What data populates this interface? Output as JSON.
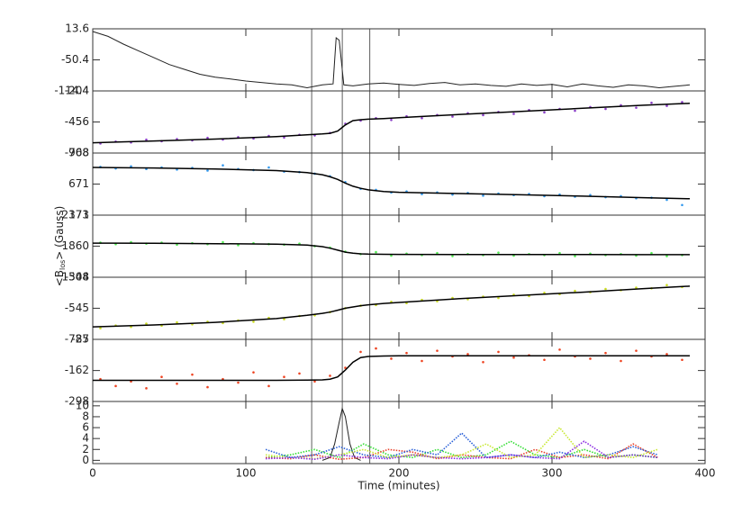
{
  "chart_data": [
    {
      "type": "line",
      "color": "#222222",
      "ylim": [
        -114.4,
        13.6
      ],
      "yticks": [
        13.6,
        -50.4,
        -114.4
      ],
      "vlines": [
        143,
        163,
        181
      ],
      "x": [
        0,
        10,
        20,
        30,
        40,
        50,
        60,
        70,
        80,
        90,
        100,
        110,
        120,
        130,
        140,
        150,
        157,
        159,
        161,
        164,
        170,
        180,
        190,
        200,
        210,
        220,
        230,
        240,
        250,
        260,
        270,
        280,
        290,
        300,
        310,
        320,
        330,
        340,
        350,
        360,
        370,
        380,
        390
      ],
      "values": [
        8,
        -2,
        -18,
        -32,
        -46,
        -60,
        -70,
        -80,
        -86,
        -90,
        -94,
        -97,
        -100,
        -102,
        -108,
        -102,
        -100,
        -5,
        -10,
        -102,
        -104,
        -100,
        -98,
        -101,
        -103,
        -99,
        -97,
        -102,
        -100,
        -103,
        -105,
        -100,
        -103,
        -101,
        -106,
        -100,
        -104,
        -107,
        -102,
        -104,
        -108,
        -105,
        -102
      ]
    },
    {
      "type": "scatter",
      "color": "#8b3fc8",
      "ylim": [
        -708,
        -204
      ],
      "yticks": [
        -204,
        -456,
        -708
      ],
      "x": [
        5,
        15,
        25,
        35,
        45,
        55,
        65,
        75,
        85,
        95,
        105,
        115,
        125,
        135,
        145,
        155,
        165,
        175,
        185,
        195,
        205,
        215,
        225,
        235,
        245,
        255,
        265,
        275,
        285,
        295,
        305,
        315,
        325,
        335,
        345,
        355,
        365,
        375,
        385
      ],
      "values": [
        -630,
        -615,
        -622,
        -600,
        -612,
        -595,
        -605,
        -585,
        -598,
        -580,
        -590,
        -570,
        -582,
        -560,
        -565,
        -545,
        -470,
        -445,
        -425,
        -440,
        -410,
        -425,
        -400,
        -412,
        -385,
        -400,
        -375,
        -390,
        -360,
        -378,
        -350,
        -365,
        -335,
        -350,
        -320,
        -340,
        -300,
        -325,
        -295
      ],
      "fit_color": "#000000",
      "fit_x": [
        0,
        40,
        80,
        120,
        140,
        150,
        155,
        160,
        165,
        170,
        175,
        180,
        190,
        200,
        240,
        280,
        320,
        360,
        390
      ],
      "fit_values": [
        -625,
        -610,
        -595,
        -575,
        -560,
        -553,
        -548,
        -530,
        -480,
        -445,
        -438,
        -433,
        -428,
        -422,
        -395,
        -370,
        -345,
        -320,
        -305
      ]
    },
    {
      "type": "scatter",
      "color": "#3399ee",
      "ylim": [
        373,
        968
      ],
      "yticks": [
        968,
        671,
        373
      ],
      "x": [
        5,
        15,
        25,
        35,
        45,
        55,
        65,
        75,
        85,
        95,
        105,
        115,
        125,
        135,
        145,
        155,
        165,
        175,
        185,
        195,
        205,
        215,
        225,
        235,
        245,
        255,
        265,
        275,
        285,
        295,
        305,
        315,
        325,
        335,
        345,
        355,
        365,
        375,
        385
      ],
      "values": [
        835,
        820,
        840,
        815,
        830,
        810,
        825,
        800,
        850,
        815,
        805,
        830,
        790,
        785,
        770,
        745,
        690,
        625,
        615,
        590,
        600,
        575,
        590,
        570,
        585,
        560,
        580,
        565,
        575,
        555,
        570,
        550,
        565,
        545,
        555,
        535,
        540,
        520,
        470
      ],
      "fit_color": "#000000",
      "fit_x": [
        0,
        40,
        80,
        120,
        140,
        150,
        155,
        160,
        165,
        170,
        175,
        180,
        190,
        200,
        240,
        280,
        320,
        360,
        390
      ],
      "fit_values": [
        830,
        825,
        815,
        800,
        780,
        760,
        740,
        715,
        680,
        650,
        630,
        615,
        600,
        592,
        580,
        568,
        555,
        540,
        530
      ]
    },
    {
      "type": "scatter",
      "color": "#55ee55",
      "ylim": [
        1548,
        2171
      ],
      "yticks": [
        2171,
        1860,
        1548
      ],
      "ylabel": [
        "<B",
        "los",
        "> (Gauss)"
      ],
      "x": [
        5,
        15,
        25,
        35,
        45,
        55,
        65,
        75,
        85,
        95,
        105,
        115,
        125,
        135,
        145,
        155,
        165,
        175,
        185,
        195,
        205,
        215,
        225,
        235,
        245,
        255,
        265,
        275,
        285,
        295,
        305,
        315,
        325,
        335,
        345,
        355,
        365,
        375,
        385
      ],
      "values": [
        1895,
        1880,
        1900,
        1885,
        1895,
        1875,
        1890,
        1880,
        1900,
        1870,
        1890,
        1880,
        1875,
        1885,
        1860,
        1845,
        1805,
        1780,
        1800,
        1765,
        1785,
        1770,
        1790,
        1760,
        1780,
        1770,
        1795,
        1765,
        1780,
        1770,
        1790,
        1760,
        1785,
        1770,
        1780,
        1765,
        1790,
        1760,
        1770
      ],
      "fit_color": "#000000",
      "fit_x": [
        0,
        40,
        80,
        120,
        140,
        150,
        155,
        160,
        165,
        170,
        175,
        180,
        190,
        200,
        240,
        280,
        320,
        360,
        390
      ],
      "fit_values": [
        1890,
        1888,
        1885,
        1880,
        1870,
        1855,
        1840,
        1820,
        1800,
        1790,
        1783,
        1780,
        1778,
        1777,
        1776,
        1776,
        1776,
        1775,
        1775
      ]
    },
    {
      "type": "scatter",
      "color": "#ccdd22",
      "ylim": [
        -787,
        -304
      ],
      "yticks": [
        -304,
        -545,
        -787
      ],
      "x": [
        5,
        15,
        25,
        35,
        45,
        55,
        65,
        75,
        85,
        95,
        105,
        115,
        125,
        135,
        145,
        155,
        165,
        175,
        185,
        195,
        205,
        215,
        225,
        235,
        245,
        255,
        265,
        275,
        285,
        295,
        305,
        315,
        325,
        335,
        345,
        355,
        365,
        375,
        385
      ],
      "values": [
        -700,
        -680,
        -690,
        -665,
        -680,
        -655,
        -670,
        -650,
        -660,
        -640,
        -650,
        -620,
        -630,
        -605,
        -600,
        -575,
        -545,
        -525,
        -520,
        -495,
        -505,
        -480,
        -490,
        -465,
        -475,
        -455,
        -465,
        -440,
        -450,
        -425,
        -435,
        -410,
        -420,
        -395,
        -405,
        -385,
        -390,
        -365,
        -380
      ],
      "fit_color": "#000000",
      "fit_x": [
        0,
        40,
        80,
        120,
        140,
        150,
        155,
        160,
        165,
        170,
        175,
        180,
        190,
        200,
        240,
        280,
        320,
        360,
        390
      ],
      "fit_values": [
        -690,
        -675,
        -655,
        -625,
        -600,
        -585,
        -575,
        -560,
        -545,
        -535,
        -525,
        -518,
        -508,
        -500,
        -470,
        -445,
        -420,
        -392,
        -373
      ]
    },
    {
      "type": "scatter",
      "color": "#ee4422",
      "ylim": [
        -298,
        -25
      ],
      "yticks": [
        -25,
        -162,
        -298
      ],
      "x": [
        5,
        15,
        25,
        35,
        45,
        55,
        65,
        75,
        85,
        95,
        105,
        115,
        125,
        135,
        145,
        155,
        165,
        175,
        185,
        195,
        205,
        215,
        225,
        235,
        245,
        255,
        265,
        275,
        285,
        295,
        305,
        315,
        325,
        335,
        345,
        355,
        365,
        375,
        385
      ],
      "values": [
        -200,
        -230,
        -210,
        -240,
        -190,
        -220,
        -180,
        -235,
        -200,
        -215,
        -170,
        -230,
        -190,
        -175,
        -210,
        -185,
        -150,
        -80,
        -65,
        -110,
        -85,
        -120,
        -75,
        -100,
        -90,
        -125,
        -80,
        -105,
        -95,
        -115,
        -70,
        -100,
        -110,
        -85,
        -120,
        -75,
        -100,
        -90,
        -115
      ],
      "fit_color": "#000000",
      "fit_x": [
        0,
        40,
        80,
        120,
        140,
        150,
        155,
        160,
        165,
        170,
        175,
        180,
        190,
        200,
        240,
        280,
        320,
        360,
        390
      ],
      "fit_values": [
        -205,
        -205,
        -205,
        -205,
        -204,
        -203,
        -200,
        -190,
        -160,
        -125,
        -105,
        -100,
        -98,
        -97,
        -97,
        -97,
        -97,
        -97,
        -97
      ]
    },
    {
      "type": "line",
      "ylim": [
        -0.6,
        10.8
      ],
      "yticks": [
        0,
        2,
        4,
        6,
        8,
        10
      ],
      "xlim": [
        0,
        400
      ],
      "xticks": [
        0,
        100,
        200,
        300,
        400
      ],
      "xlabel": "Time (minutes)",
      "series": [
        {
          "color": "#222222",
          "x": [
            150,
            155,
            158,
            161,
            163,
            165,
            168,
            171,
            175
          ],
          "values": [
            0,
            0.5,
            3,
            7,
            9.5,
            8,
            3,
            0.5,
            0
          ]
        },
        {
          "color": "#33dd33",
          "x": [
            113,
            129,
            145,
            161,
            177,
            193,
            209,
            225,
            241,
            257,
            273,
            289,
            305,
            321,
            337,
            353,
            369
          ],
          "values": [
            0.5,
            1,
            2,
            0.5,
            3,
            1,
            0.5,
            2,
            0.5,
            1,
            3.5,
            1,
            0.5,
            2,
            0.5,
            1,
            0.5
          ]
        },
        {
          "color": "#e8402a",
          "x": [
            113,
            129,
            145,
            161,
            177,
            193,
            209,
            225,
            241,
            257,
            273,
            289,
            305,
            321,
            337,
            353,
            369
          ],
          "values": [
            0.5,
            0.3,
            1,
            0.2,
            0.5,
            2,
            1.5,
            0.3,
            1,
            0.5,
            0.3,
            2,
            0.5,
            1,
            0.3,
            3,
            0.5
          ]
        },
        {
          "color": "#2a60d8",
          "x": [
            113,
            129,
            145,
            161,
            177,
            193,
            209,
            225,
            241,
            257,
            273,
            289,
            305,
            321,
            337,
            353,
            369
          ],
          "values": [
            2,
            0.5,
            1,
            2.5,
            1,
            0.5,
            2,
            1,
            5,
            0.5,
            1,
            0.5,
            1.5,
            0.5,
            1,
            2.5,
            1
          ]
        },
        {
          "color": "#c8e830",
          "x": [
            113,
            129,
            145,
            161,
            177,
            193,
            209,
            225,
            241,
            257,
            273,
            289,
            305,
            321,
            337,
            353,
            369
          ],
          "values": [
            1,
            0.5,
            0.3,
            1,
            2,
            0.5,
            1,
            0.5,
            1,
            3,
            0.5,
            1,
            6,
            0.5,
            1,
            0.5,
            2
          ]
        },
        {
          "color": "#8a2be2",
          "x": [
            113,
            129,
            145,
            161,
            177,
            193,
            209,
            225,
            241,
            257,
            273,
            289,
            305,
            321,
            337,
            353,
            369
          ],
          "values": [
            0.3,
            0.5,
            0.2,
            1,
            0.5,
            0.3,
            1,
            0.5,
            0.3,
            0.5,
            1,
            0.5,
            0.3,
            3.5,
            0.5,
            1,
            0.5
          ]
        }
      ]
    }
  ]
}
